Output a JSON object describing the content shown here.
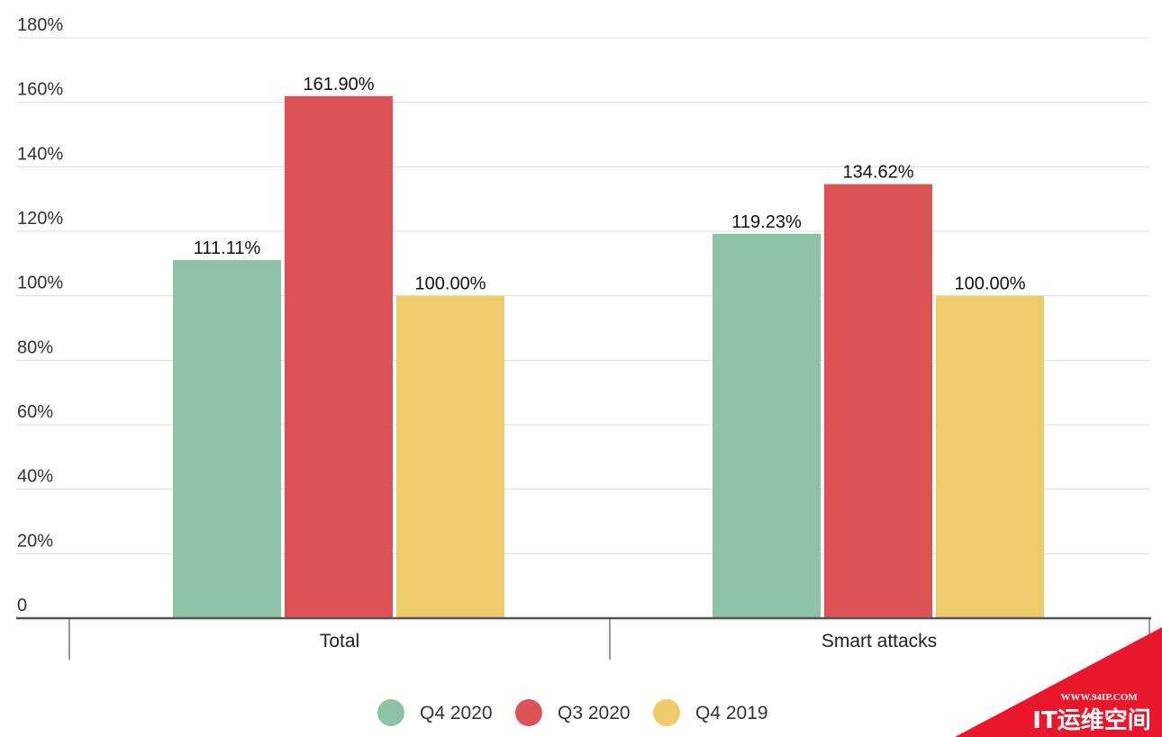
{
  "chart_data": {
    "type": "bar",
    "categories": [
      "Total",
      "Smart attacks"
    ],
    "series": [
      {
        "name": "Q4 2020",
        "color": "#8dc2a6",
        "values": [
          111.11,
          119.23
        ],
        "labels": [
          "111.11%",
          "119.23%"
        ]
      },
      {
        "name": "Q3 2020",
        "color": "#dc5356",
        "values": [
          161.9,
          134.62
        ],
        "labels": [
          "161.90%",
          "134.62%"
        ]
      },
      {
        "name": "Q4 2019",
        "color": "#eecb6b",
        "values": [
          100.0,
          100.0
        ],
        "labels": [
          "100.00%",
          "100.00%"
        ]
      }
    ],
    "yticks": [
      0,
      20,
      40,
      60,
      80,
      100,
      120,
      140,
      160,
      180
    ],
    "ytick_labels": [
      "0",
      "20%",
      "40%",
      "60%",
      "80%",
      "100%",
      "120%",
      "140%",
      "160%",
      "180%"
    ],
    "ylim": [
      0,
      180
    ],
    "grid": true,
    "legend_position": "bottom-center"
  },
  "watermark": {
    "url": "WWW.94IP.COM",
    "name": "IT运维空间",
    "color": "#e8172b"
  }
}
